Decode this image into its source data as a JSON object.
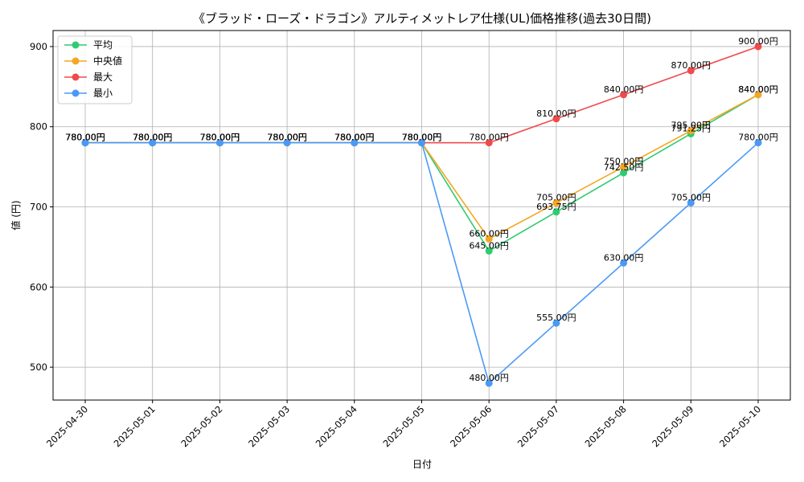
{
  "chart_data": {
    "type": "line",
    "title": "《ブラッド・ローズ・ドラゴン》アルティメットレア仕様(UL)価格推移(過去30日間)",
    "xlabel": "日付",
    "ylabel": "値 (円)",
    "categories": [
      "2025-04-30",
      "2025-05-01",
      "2025-05-02",
      "2025-05-03",
      "2025-05-04",
      "2025-05-05",
      "2025-05-06",
      "2025-05-07",
      "2025-05-08",
      "2025-05-09",
      "2025-05-10"
    ],
    "ylim": [
      459,
      920
    ],
    "yticks": [
      500,
      600,
      700,
      800,
      900
    ],
    "grid": true,
    "legend_position": "top-left",
    "label_suffix": "円",
    "series": [
      {
        "name": "平均",
        "color": "#2ecc71",
        "values": [
          780,
          780,
          780,
          780,
          780,
          780,
          645,
          693.75,
          742.5,
          791.25,
          840
        ]
      },
      {
        "name": "中央値",
        "color": "#f5a623",
        "values": [
          780,
          780,
          780,
          780,
          780,
          780,
          660,
          705,
          750,
          795,
          840
        ]
      },
      {
        "name": "最大",
        "color": "#ef4b4b",
        "values": [
          780,
          780,
          780,
          780,
          780,
          780,
          780,
          810,
          840,
          870,
          900
        ]
      },
      {
        "name": "最小",
        "color": "#4a9af5",
        "values": [
          780,
          780,
          780,
          780,
          780,
          780,
          480,
          555,
          630,
          705,
          780
        ]
      }
    ]
  }
}
